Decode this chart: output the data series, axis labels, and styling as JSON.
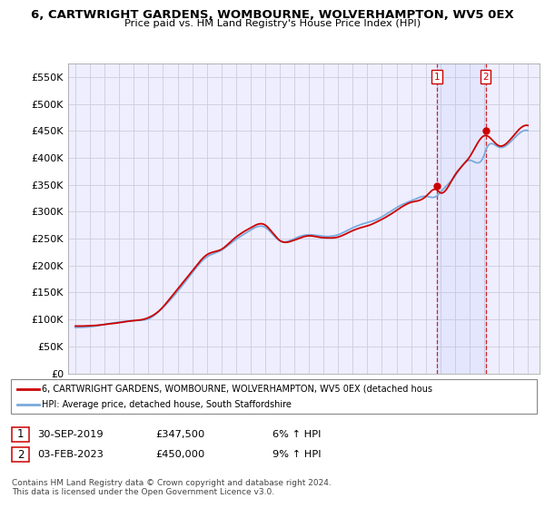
{
  "title1": "6, CARTWRIGHT GARDENS, WOMBOURNE, WOLVERHAMPTON, WV5 0EX",
  "title2": "Price paid vs. HM Land Registry's House Price Index (HPI)",
  "ylabel_ticks": [
    "£0",
    "£50K",
    "£100K",
    "£150K",
    "£200K",
    "£250K",
    "£300K",
    "£350K",
    "£400K",
    "£450K",
    "£500K",
    "£550K"
  ],
  "ytick_vals": [
    0,
    50000,
    100000,
    150000,
    200000,
    250000,
    300000,
    350000,
    400000,
    450000,
    500000,
    550000
  ],
  "ylim": [
    0,
    575000
  ],
  "xlim_start": 1994.5,
  "xlim_end": 2026.8,
  "legend_line1": "6, CARTWRIGHT GARDENS, WOMBOURNE, WOLVERHAMPTON, WV5 0EX (detached hous",
  "legend_line2": "HPI: Average price, detached house, South Staffordshire",
  "table_row1": [
    "1",
    "30-SEP-2019",
    "£347,500",
    "6% ↑ HPI"
  ],
  "table_row2": [
    "2",
    "03-FEB-2023",
    "£450,000",
    "9% ↑ HPI"
  ],
  "footnote": "Contains HM Land Registry data © Crown copyright and database right 2024.\nThis data is licensed under the Open Government Licence v3.0.",
  "sale1_x": 2019.75,
  "sale1_y": 347500,
  "sale2_x": 2023.1,
  "sale2_y": 450000,
  "red_color": "#cc0000",
  "blue_color": "#7aaadd",
  "bg_plot": "#eeeeff",
  "bg_figure": "#ffffff",
  "grid_color": "#ccccdd"
}
